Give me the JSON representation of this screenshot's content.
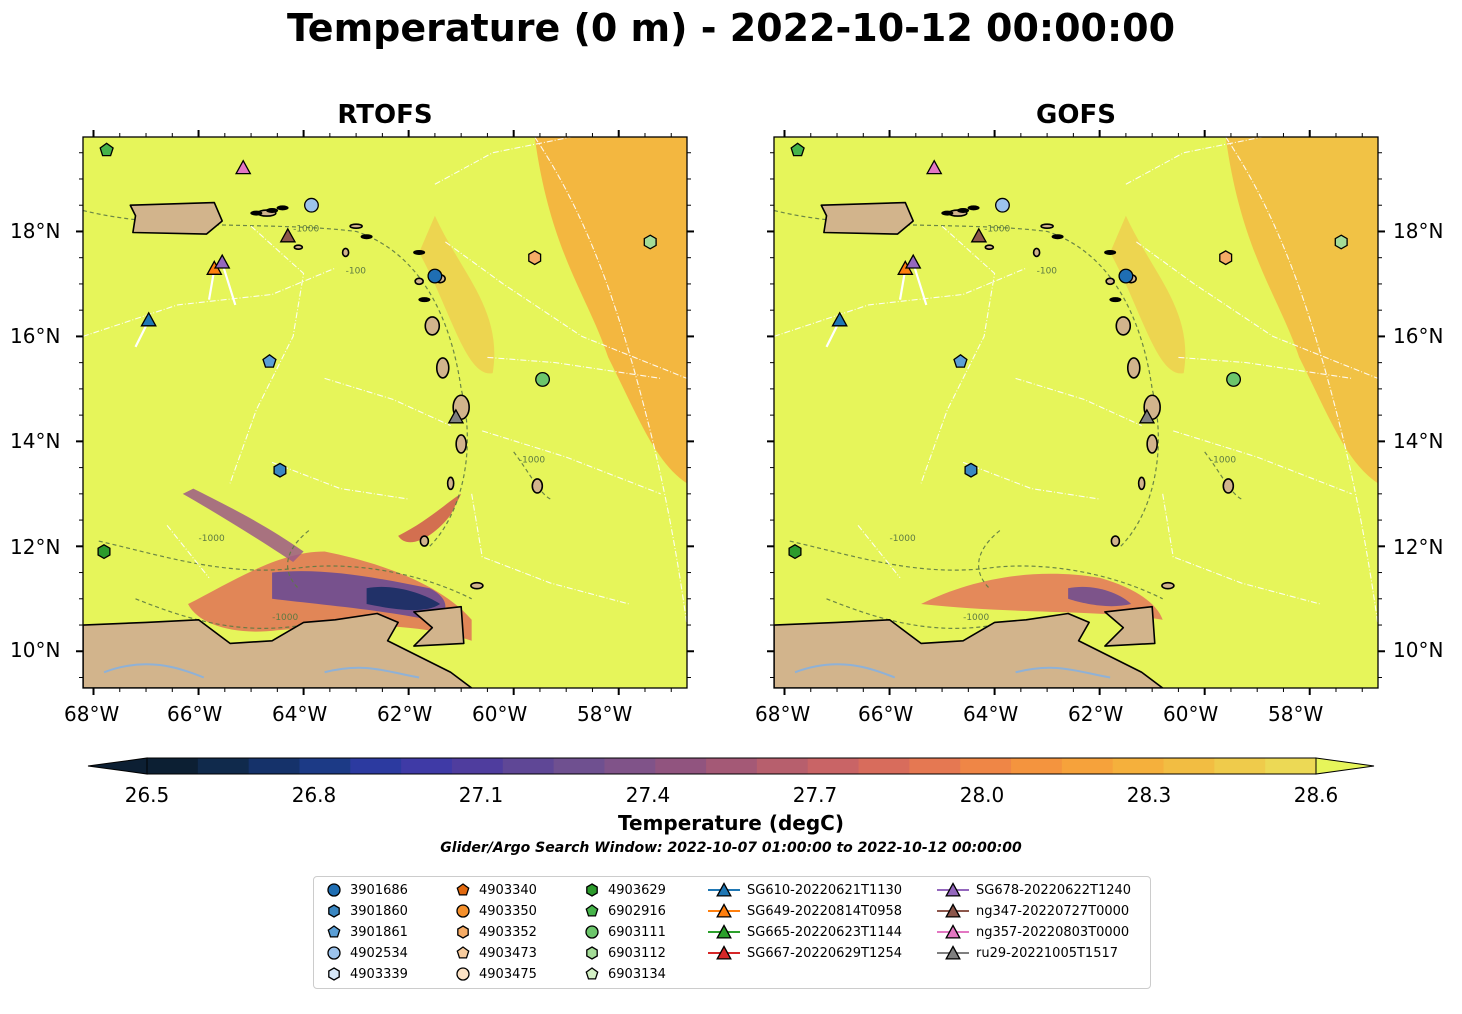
{
  "title": "Temperature (0 m) - 2022-10-12 00:00:00",
  "panels": [
    {
      "title": "RTOFS"
    },
    {
      "title": "GOFS"
    }
  ],
  "lon_labels": [
    "68°W",
    "66°W",
    "64°W",
    "62°W",
    "60°W",
    "58°W"
  ],
  "lat_labels": [
    "18°N",
    "16°N",
    "14°N",
    "12°N",
    "10°N"
  ],
  "contour_labels": [
    "-1000",
    "-100"
  ],
  "colorbar": {
    "ticks": [
      "26.5",
      "26.8",
      "27.1",
      "27.4",
      "27.7",
      "28.0",
      "28.3",
      "28.6"
    ],
    "label": "Temperature (degC)",
    "colors": [
      "#0c1f33",
      "#102a4c",
      "#15326a",
      "#1c3a86",
      "#2c3aa0",
      "#3f3aa6",
      "#4f3d9e",
      "#5f4796",
      "#6f5090",
      "#805389",
      "#91547f",
      "#a45976",
      "#b75f6d",
      "#c96466",
      "#d86c5c",
      "#e57852",
      "#ef8646",
      "#f4943e",
      "#f6a23b",
      "#f5b03c",
      "#f2bd42",
      "#efcb4b",
      "#ecd955"
    ],
    "low_color": "#0c1f33",
    "high_color": "#e6f55a"
  },
  "search_window": "Glider/Argo Search Window: 2022-10-07 01:00:00 to 2022-10-12 00:00:00",
  "legend": [
    {
      "label": "3901686",
      "marker": "circle",
      "color": "#1f6eb3"
    },
    {
      "label": "3901860",
      "marker": "hexagon",
      "color": "#3a87c2"
    },
    {
      "label": "3901861",
      "marker": "pentagon",
      "color": "#5b9fd6"
    },
    {
      "label": "4902534",
      "marker": "circle",
      "color": "#9cc3ec"
    },
    {
      "label": "4903339",
      "marker": "hexagon",
      "color": "#d6e7f7"
    },
    {
      "label": "4903340",
      "marker": "pentagon",
      "color": "#e2690f"
    },
    {
      "label": "4903350",
      "marker": "circle",
      "color": "#f5902c"
    },
    {
      "label": "4903352",
      "marker": "hexagon",
      "color": "#f6ac66"
    },
    {
      "label": "4903473",
      "marker": "pentagon",
      "color": "#f8cc9e"
    },
    {
      "label": "4903475",
      "marker": "circle",
      "color": "#fce3c6"
    },
    {
      "label": "4903629",
      "marker": "hexagon",
      "color": "#2c9b2c"
    },
    {
      "label": "6902916",
      "marker": "pentagon",
      "color": "#46b44a"
    },
    {
      "label": "6903111",
      "marker": "circle",
      "color": "#6cc66b"
    },
    {
      "label": "6903112",
      "marker": "hexagon",
      "color": "#a4dc97"
    },
    {
      "label": "6903134",
      "marker": "pentagon",
      "color": "#d5f2c6"
    },
    {
      "label": "SG610-20220621T1130",
      "marker": "triangle",
      "color": "#1f77b4"
    },
    {
      "label": "SG649-20220814T0958",
      "marker": "triangle",
      "color": "#ff7f0e"
    },
    {
      "label": "SG665-20220623T1144",
      "marker": "triangle",
      "color": "#2ca02c"
    },
    {
      "label": "SG667-20220629T1254",
      "marker": "triangle",
      "color": "#d62728"
    },
    {
      "label": "SG678-20220622T1240",
      "marker": "triangle",
      "color": "#9467bd"
    },
    {
      "label": "ng347-20220727T0000",
      "marker": "triangle",
      "color": "#8c564b"
    },
    {
      "label": "ng357-20220803T0000",
      "marker": "triangle",
      "color": "#e377c2"
    },
    {
      "label": "ru29-20221005T1517",
      "marker": "triangle",
      "color": "#7f7f7f"
    }
  ],
  "map_colors": {
    "ocean": "#e6f55a",
    "land": "#d2b48c",
    "warm": "#f5ac3c"
  },
  "map_markers": [
    {
      "id": "6902916",
      "lon": -67.75,
      "lat": 19.55
    },
    {
      "id": "ng357-20220803T0000",
      "lon": -65.15,
      "lat": 19.2
    },
    {
      "id": "4902534",
      "lon": -63.85,
      "lat": 18.5
    },
    {
      "id": "ng347-20220727T0000",
      "lon": -64.3,
      "lat": 17.9
    },
    {
      "id": "SG649-20220814T0958",
      "lon": -65.7,
      "lat": 17.28
    },
    {
      "id": "SG678-20220622T1240",
      "lon": -65.55,
      "lat": 17.4
    },
    {
      "id": "3901686",
      "lon": -61.5,
      "lat": 17.15
    },
    {
      "id": "4903352",
      "lon": -59.6,
      "lat": 17.5
    },
    {
      "id": "6903112",
      "lon": -57.4,
      "lat": 17.8
    },
    {
      "id": "SG610-20220621T1130",
      "lon": -66.95,
      "lat": 16.3
    },
    {
      "id": "3901861",
      "lon": -64.65,
      "lat": 15.52
    },
    {
      "id": "6903111",
      "lon": -59.45,
      "lat": 15.18
    },
    {
      "id": "ru29-20221005T1517",
      "lon": -61.1,
      "lat": 14.45
    },
    {
      "id": "3901860",
      "lon": -64.45,
      "lat": 13.45
    },
    {
      "id": "4903629",
      "lon": -67.8,
      "lat": 11.9
    }
  ]
}
